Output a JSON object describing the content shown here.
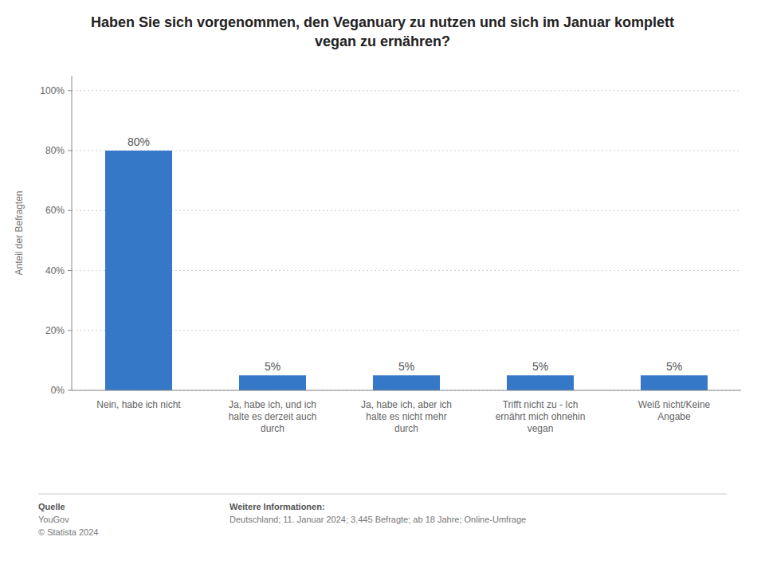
{
  "chart_data": {
    "type": "bar",
    "title": "Haben Sie sich vorgenommen, den Veganuary zu nutzen und sich im Januar komplett\nvegan zu ernähren?",
    "categories": [
      "Nein, habe ich nicht",
      "Ja, habe ich, und ich\nhalte es derzeit auch\ndurch",
      "Ja, habe ich, aber ich\nhalte es nicht mehr\ndurch",
      "Trifft nicht zu - Ich\nernährt mich ohnehin\nvegan",
      "Weiß nicht/Keine\nAngabe"
    ],
    "values": [
      80,
      5,
      5,
      5,
      5
    ],
    "value_labels": [
      "80%",
      "5%",
      "5%",
      "5%",
      "5%"
    ],
    "data_labels": true,
    "color": "#3578c8",
    "ylabel": "Anteil der Befragten",
    "ylim": [
      0,
      105
    ],
    "yticks": [
      {
        "value": 0,
        "label": "0%"
      },
      {
        "value": 20,
        "label": "20%"
      },
      {
        "value": 40,
        "label": "40%"
      },
      {
        "value": 60,
        "label": "60%"
      },
      {
        "value": 80,
        "label": "80%"
      },
      {
        "value": 100,
        "label": "100%"
      }
    ],
    "grid": true,
    "annotations": [
      "Quelle",
      "YouGov",
      "© Statista 2024",
      "Weitere Informationen:",
      "Deutschland; 11. Januar 2024; 3.445 Befragte; ab 18 Jahre; Online-Umfrage"
    ]
  }
}
